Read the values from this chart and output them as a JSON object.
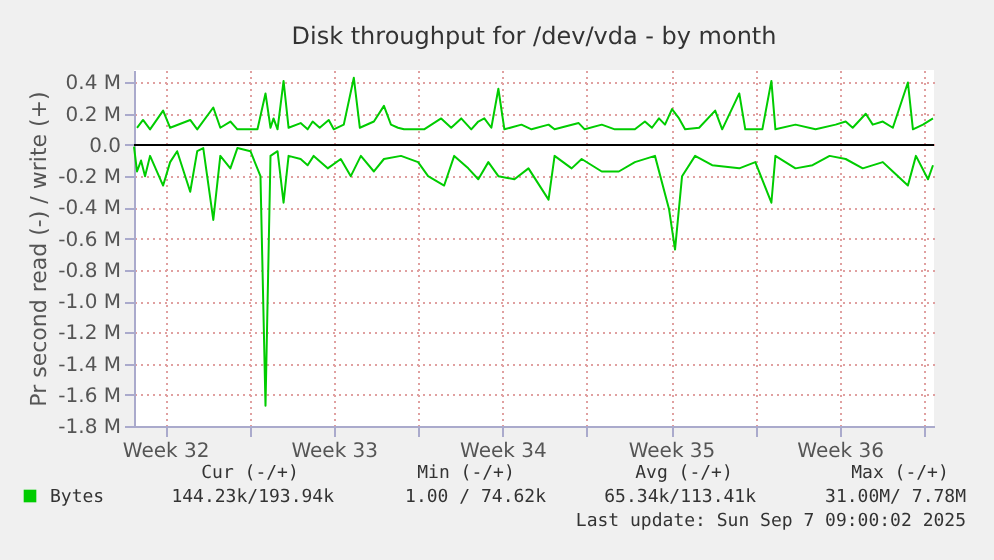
{
  "chart_data": {
    "type": "line",
    "title": "Disk throughput for /dev/vda - by month",
    "ylabel": "Pr second read (-) / write (+)",
    "xlim": [
      "2025-08-05T05:00",
      "2025-09-07T10:00"
    ],
    "xticks": [
      {
        "value": "2025-08-06T12:00",
        "label": "Week 32"
      },
      {
        "value": "2025-08-10T00:00",
        "label": null
      },
      {
        "value": "2025-08-13T12:00",
        "label": "Week 33"
      },
      {
        "value": "2025-08-17T00:00",
        "label": null
      },
      {
        "value": "2025-08-20T12:00",
        "label": "Week 34"
      },
      {
        "value": "2025-08-24T00:00",
        "label": null
      },
      {
        "value": "2025-08-27T12:00",
        "label": "Week 35"
      },
      {
        "value": "2025-08-31T00:00",
        "label": null
      },
      {
        "value": "2025-09-03T12:00",
        "label": "Week 36"
      },
      {
        "value": "2025-09-07T00:00",
        "label": null
      }
    ],
    "ylim": [
      -1800000,
      480000
    ],
    "yticks": [
      {
        "value": 400000,
        "label": "0.4 M"
      },
      {
        "value": 200000,
        "label": "0.2 M"
      },
      {
        "value": 0,
        "label": "0.0"
      },
      {
        "value": -200000,
        "label": "-0.2 M"
      },
      {
        "value": -400000,
        "label": "-0.4 M"
      },
      {
        "value": -600000,
        "label": "-0.6 M"
      },
      {
        "value": -800000,
        "label": "-0.8 M"
      },
      {
        "value": -1000000,
        "label": "-1.0 M"
      },
      {
        "value": -1200000,
        "label": "-1.2 M"
      },
      {
        "value": -1400000,
        "label": "-1.4 M"
      },
      {
        "value": -1600000,
        "label": "-1.6 M"
      },
      {
        "value": -1800000,
        "label": "-1.8 M"
      }
    ],
    "grid": true,
    "legend": "bottom",
    "marker": "none",
    "line_style": "solid",
    "ref_lines": [
      {
        "axis": "y",
        "value": 0,
        "color": "#000000"
      }
    ],
    "series": [
      {
        "name": "Bytes",
        "color": "#00cc00",
        "x": [
          "2025-08-05T08:00",
          "2025-08-05T14:00",
          "2025-08-05T21:00",
          "2025-08-06T10:00",
          "2025-08-06T17:00",
          "2025-08-07T13:00",
          "2025-08-07T20:00",
          "2025-08-08T12:00",
          "2025-08-08T19:00",
          "2025-08-09T05:00",
          "2025-08-09T12:00",
          "2025-08-10T08:00",
          "2025-08-10T16:00",
          "2025-08-10T21:00",
          "2025-08-11T00:00",
          "2025-08-11T04:00",
          "2025-08-11T10:00",
          "2025-08-11T15:00",
          "2025-08-12T03:00",
          "2025-08-12T10:00",
          "2025-08-12T15:00",
          "2025-08-12T22:00",
          "2025-08-13T07:00",
          "2025-08-13T12:00",
          "2025-08-13T22:00",
          "2025-08-14T08:00",
          "2025-08-14T14:00",
          "2025-08-15T04:00",
          "2025-08-15T14:00",
          "2025-08-15T21:00",
          "2025-08-16T04:00",
          "2025-08-16T10:00",
          "2025-08-17T06:00",
          "2025-08-17T23:00",
          "2025-08-18T09:00",
          "2025-08-18T19:00",
          "2025-08-19T05:00",
          "2025-08-19T12:00",
          "2025-08-19T18:00",
          "2025-08-20T01:00",
          "2025-08-20T08:00",
          "2025-08-20T14:00",
          "2025-08-21T07:00",
          "2025-08-21T17:00",
          "2025-08-22T10:00",
          "2025-08-22T16:00",
          "2025-08-23T16:00",
          "2025-08-23T22:00",
          "2025-08-24T15:00",
          "2025-08-25T04:00",
          "2025-08-26T00:00",
          "2025-08-26T10:00",
          "2025-08-26T17:00",
          "2025-08-27T00:00",
          "2025-08-27T06:00",
          "2025-08-27T13:00",
          "2025-08-27T20:00",
          "2025-08-28T02:00",
          "2025-08-28T16:00",
          "2025-08-29T08:00",
          "2025-08-29T15:00",
          "2025-08-30T08:00",
          "2025-08-30T14:00",
          "2025-08-31T07:00",
          "2025-08-31T16:00",
          "2025-08-31T20:00",
          "2025-09-01T16:00",
          "2025-09-02T12:00",
          "2025-09-03T08:00",
          "2025-09-03T18:00",
          "2025-09-04T01:00",
          "2025-09-04T14:00",
          "2025-09-04T21:00",
          "2025-09-05T07:00",
          "2025-09-05T17:00",
          "2025-09-06T08:00",
          "2025-09-06T13:00",
          "2025-09-06T23:00",
          "2025-09-07T09:00"
        ],
        "values": [
          110000,
          160000,
          100000,
          220000,
          110000,
          160000,
          100000,
          240000,
          110000,
          150000,
          100000,
          100000,
          330000,
          110000,
          170000,
          100000,
          410000,
          110000,
          140000,
          100000,
          150000,
          110000,
          160000,
          100000,
          130000,
          430000,
          110000,
          150000,
          250000,
          130000,
          110000,
          100000,
          100000,
          170000,
          110000,
          170000,
          100000,
          150000,
          170000,
          110000,
          360000,
          100000,
          130000,
          100000,
          130000,
          100000,
          140000,
          100000,
          130000,
          100000,
          100000,
          150000,
          110000,
          170000,
          130000,
          230000,
          170000,
          100000,
          110000,
          220000,
          100000,
          330000,
          100000,
          100000,
          410000,
          100000,
          130000,
          100000,
          130000,
          150000,
          110000,
          200000,
          130000,
          150000,
          110000,
          400000,
          100000,
          130000,
          170000
        ]
      },
      {
        "color": "#00cc00",
        "x": [
          "2025-08-05T05:00",
          "2025-08-05T08:00",
          "2025-08-05T12:00",
          "2025-08-05T16:00",
          "2025-08-05T21:00",
          "2025-08-06T10:00",
          "2025-08-06T17:00",
          "2025-08-07T00:00",
          "2025-08-07T13:00",
          "2025-08-07T20:00",
          "2025-08-08T02:00",
          "2025-08-08T12:00",
          "2025-08-08T19:00",
          "2025-08-09T05:00",
          "2025-08-09T12:00",
          "2025-08-10T01:00",
          "2025-08-10T11:00",
          "2025-08-10T16:00",
          "2025-08-10T21:00",
          "2025-08-11T04:00",
          "2025-08-11T10:00",
          "2025-08-11T15:00",
          "2025-08-12T03:00",
          "2025-08-12T10:00",
          "2025-08-12T16:00",
          "2025-08-13T06:00",
          "2025-08-13T19:00",
          "2025-08-14T05:00",
          "2025-08-14T15:00",
          "2025-08-15T04:00",
          "2025-08-15T14:00",
          "2025-08-16T07:00",
          "2025-08-17T00:00",
          "2025-08-17T10:00",
          "2025-08-18T02:00",
          "2025-08-18T12:00",
          "2025-08-19T02:00",
          "2025-08-19T12:00",
          "2025-08-19T22:00",
          "2025-08-20T08:00",
          "2025-08-21T00:00",
          "2025-08-21T14:00",
          "2025-08-22T10:00",
          "2025-08-22T16:00",
          "2025-08-23T09:00",
          "2025-08-23T19:00",
          "2025-08-24T15:00",
          "2025-08-25T08:00",
          "2025-08-26T00:00",
          "2025-08-26T20:00",
          "2025-08-27T10:00",
          "2025-08-27T16:00",
          "2025-08-27T23:00",
          "2025-08-28T12:00",
          "2025-08-29T05:00",
          "2025-08-30T08:00",
          "2025-08-31T00:00",
          "2025-08-31T16:00",
          "2025-08-31T20:00",
          "2025-09-01T16:00",
          "2025-09-02T09:00",
          "2025-09-03T02:00",
          "2025-09-03T18:00",
          "2025-09-04T11:00",
          "2025-09-05T07:00",
          "2025-09-05T17:00",
          "2025-09-06T08:00",
          "2025-09-06T16:00",
          "2025-09-07T04:00",
          "2025-09-07T09:00"
        ],
        "values": [
          -10000,
          -170000,
          -100000,
          -200000,
          -70000,
          -260000,
          -110000,
          -40000,
          -300000,
          -40000,
          -20000,
          -480000,
          -70000,
          -150000,
          -20000,
          -40000,
          -200000,
          -1670000,
          -70000,
          -40000,
          -370000,
          -70000,
          -90000,
          -130000,
          -70000,
          -150000,
          -90000,
          -200000,
          -70000,
          -170000,
          -90000,
          -70000,
          -110000,
          -200000,
          -260000,
          -70000,
          -150000,
          -220000,
          -110000,
          -200000,
          -220000,
          -150000,
          -350000,
          -70000,
          -150000,
          -90000,
          -170000,
          -170000,
          -110000,
          -70000,
          -410000,
          -670000,
          -200000,
          -70000,
          -130000,
          -150000,
          -110000,
          -370000,
          -70000,
          -150000,
          -130000,
          -70000,
          -90000,
          -150000,
          -110000,
          -170000,
          -260000,
          -70000,
          -220000,
          -130000
        ]
      }
    ],
    "annotations": [
      "Cur (-/+)",
      "Min (-/+)",
      "Avg (-/+)",
      "Max (-/+)",
      "144.23k/193.94k",
      "1.00 / 74.62k",
      "65.34k/113.41k",
      "31.00M/  7.78M",
      "Last update: Sun Sep  7 09:00:02 2025"
    ]
  }
}
